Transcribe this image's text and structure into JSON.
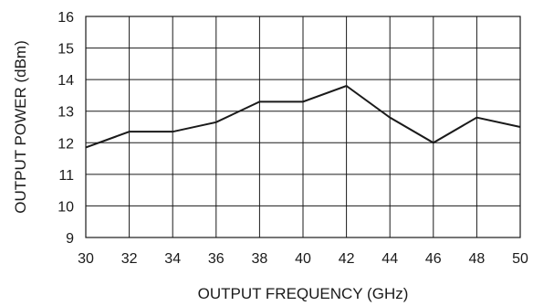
{
  "chart_data": {
    "type": "line",
    "title": "",
    "xlabel": "OUTPUT FREQUENCY (GHz)",
    "ylabel": "OUTPUT POWER (dBm)",
    "xlim": [
      30,
      50
    ],
    "ylim": [
      9,
      16
    ],
    "grid": true,
    "x_ticks": [
      30,
      32,
      34,
      36,
      38,
      40,
      42,
      44,
      46,
      48,
      50
    ],
    "y_ticks": [
      9,
      10,
      11,
      12,
      13,
      14,
      15,
      16
    ],
    "series": [
      {
        "x": [
          30,
          32,
          34,
          36,
          38,
          40,
          42,
          44,
          46,
          48,
          50
        ],
        "y": [
          11.85,
          12.35,
          12.35,
          12.65,
          13.3,
          13.3,
          13.8,
          12.8,
          12.0,
          12.8,
          12.5
        ]
      }
    ],
    "colors": {
      "line": "#1a1a1a",
      "grid": "#1a1a1a",
      "frame": "#1a1a1a"
    }
  }
}
